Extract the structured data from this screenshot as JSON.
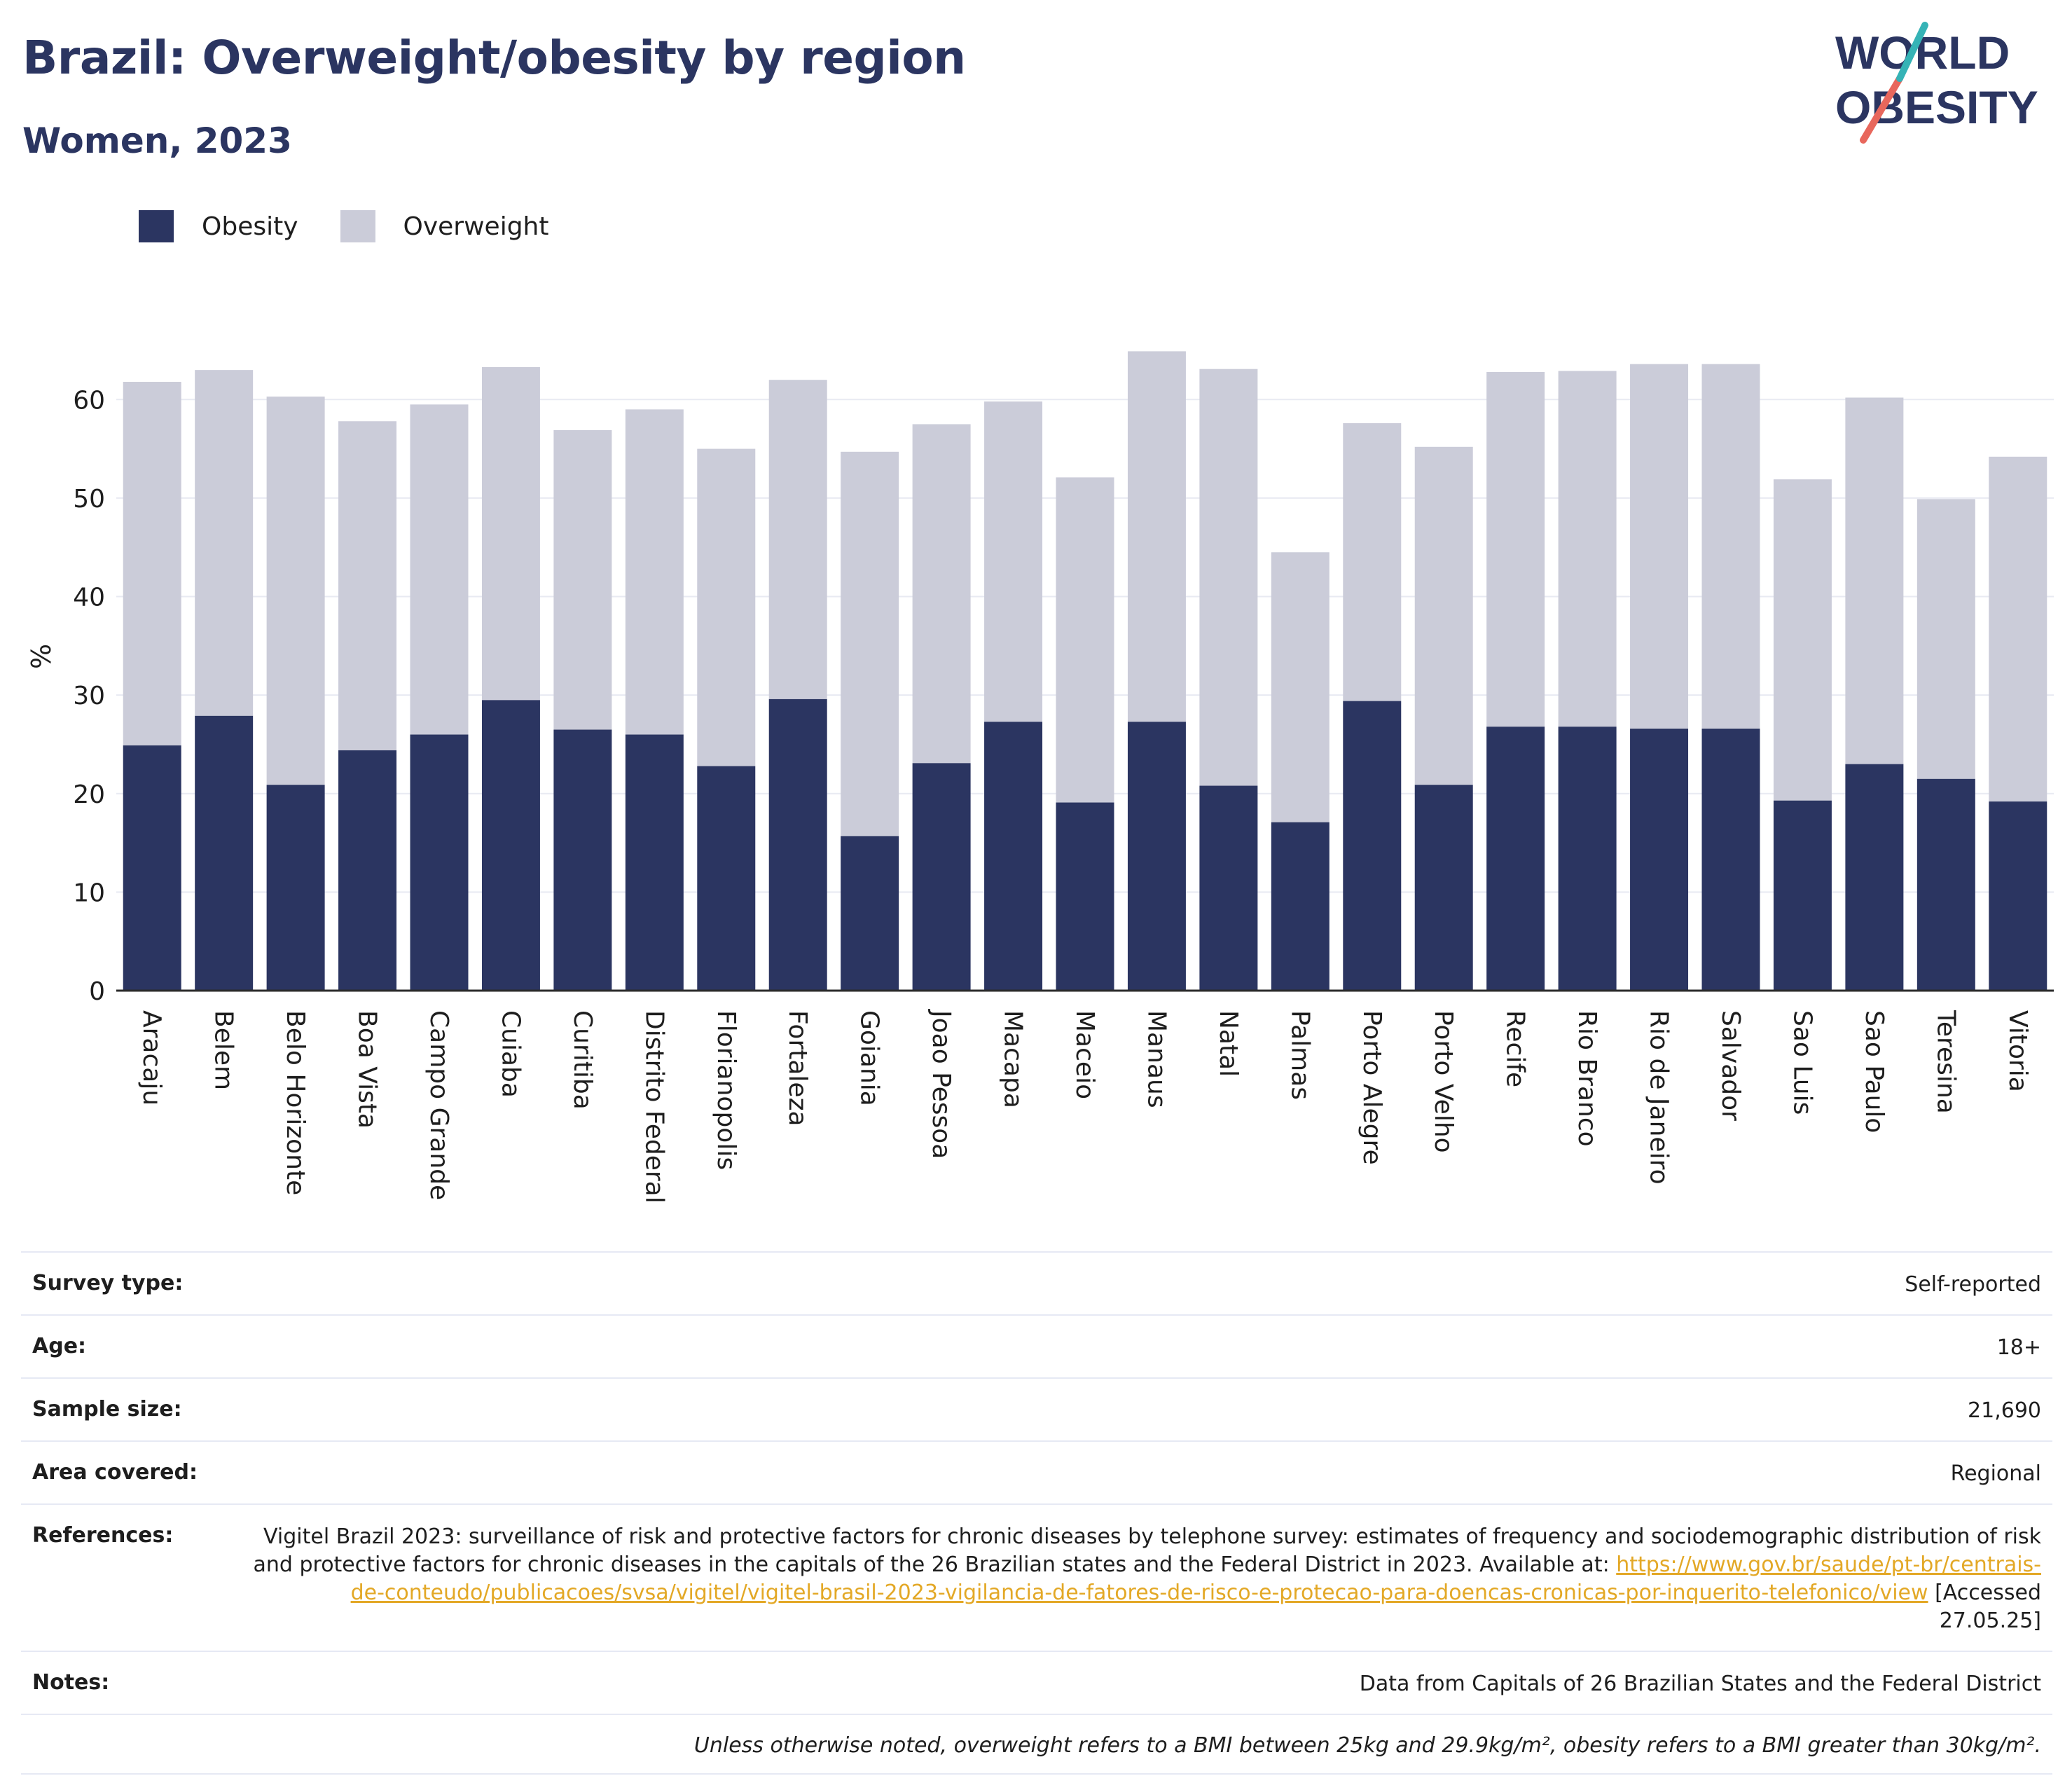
{
  "header": {
    "title": "Brazil: Overweight/obesity by region",
    "subtitle": "Women, 2023",
    "logo_line1": "WORLD",
    "logo_line2": "OBESITY"
  },
  "legend": [
    {
      "label": "Obesity",
      "color": "#2b3561"
    },
    {
      "label": "Overweight",
      "color": "#cbccd9"
    }
  ],
  "chart_data": {
    "type": "bar",
    "stacked": true,
    "ylabel": "%",
    "xlabel": "",
    "ylim": [
      0,
      65
    ],
    "yticks": [
      0,
      10,
      20,
      30,
      40,
      50,
      60
    ],
    "grid": true,
    "legend_position": "top-left",
    "categories": [
      "Aracaju",
      "Belem",
      "Belo Horizonte",
      "Boa Vista",
      "Campo Grande",
      "Cuiaba",
      "Curitiba",
      "Distrito Federal",
      "Florianopolis",
      "Fortaleza",
      "Goiania",
      "Joao Pessoa",
      "Macapa",
      "Maceio",
      "Manaus",
      "Natal",
      "Palmas",
      "Porto Alegre",
      "Porto Velho",
      "Recife",
      "Rio Branco",
      "Rio de Janeiro",
      "Salvador",
      "Sao Luis",
      "Sao Paulo",
      "Teresina",
      "Vitoria"
    ],
    "series": [
      {
        "name": "Obesity",
        "color": "#2b3561",
        "values": [
          24.9,
          27.9,
          20.9,
          24.4,
          26.0,
          29.5,
          26.5,
          26.0,
          22.8,
          29.6,
          15.7,
          23.1,
          27.3,
          19.1,
          27.3,
          20.8,
          17.1,
          29.4,
          20.9,
          26.8,
          26.8,
          26.6,
          26.6,
          19.3,
          23.0,
          21.5,
          19.2
        ]
      },
      {
        "name": "Overweight",
        "color": "#cbccd9",
        "values": [
          36.9,
          35.1,
          39.4,
          33.4,
          33.5,
          33.8,
          30.4,
          33.0,
          32.2,
          32.4,
          39.0,
          34.4,
          32.5,
          33.0,
          37.6,
          42.3,
          27.4,
          28.2,
          34.3,
          36.0,
          36.1,
          37.0,
          37.0,
          32.6,
          37.2,
          28.4,
          35.0
        ]
      }
    ]
  },
  "meta": {
    "survey_type_label": "Survey type:",
    "survey_type": "Self-reported",
    "age_label": "Age:",
    "age": "18+",
    "sample_size_label": "Sample size:",
    "sample_size": "21,690",
    "area_label": "Area covered:",
    "area": "Regional",
    "references_label": "References:",
    "references_text": "Vigitel Brazil 2023: surveillance of risk and protective factors for chronic diseases by telephone survey: estimates of frequency and sociodemographic distribution of risk and protective factors for chronic diseases in the capitals of the 26 Brazilian states and the Federal District in 2023. Available at: ",
    "references_link": "https://www.gov.br/saude/pt-br/centrais-de-conteudo/publicacoes/svsa/vigitel/vigitel-brasil-2023-vigilancia-de-fatores-de-risco-e-protecao-para-doencas-cronicas-por-inquerito-telefonico/view",
    "references_accessed": " [Accessed 27.05.25]",
    "notes_label": "Notes:",
    "notes": "Data from Capitals of 26 Brazilian States and the Federal District",
    "footnote": "Unless otherwise noted, overweight refers to a BMI between 25kg and 29.9kg/m², obesity refers to a BMI greater than 30kg/m²."
  }
}
